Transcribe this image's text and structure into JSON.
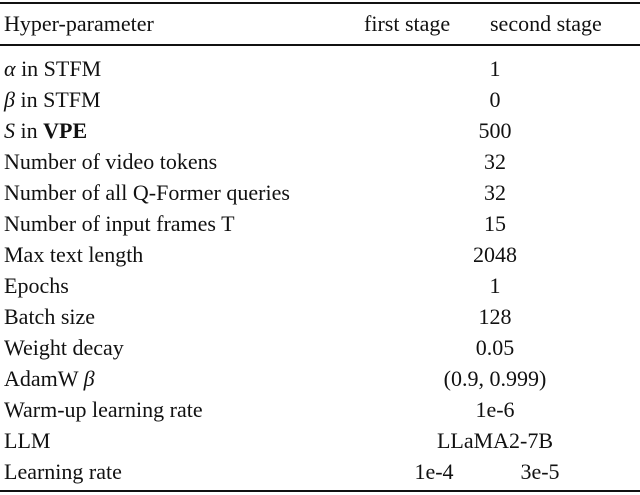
{
  "header": {
    "param": "Hyper-parameter",
    "first": "first stage",
    "second": "second stage"
  },
  "rows": [
    {
      "sym": "α",
      "rest": " in STFM",
      "value": "1"
    },
    {
      "sym": "β",
      "rest": " in STFM",
      "value": "0"
    },
    {
      "sym": "S",
      "rest": " in ",
      "bold": "VPE",
      "value": "500"
    },
    {
      "label": "Number of video tokens",
      "value": "32"
    },
    {
      "label": "Number of all Q-Former queries",
      "value": "32"
    },
    {
      "label": "Number of input frames T",
      "value": "15"
    },
    {
      "label": "Max text length",
      "value": "2048"
    },
    {
      "label": "Epochs",
      "value": "1"
    },
    {
      "label": "Batch size",
      "value": "128"
    },
    {
      "label": "Weight decay",
      "value": "0.05"
    },
    {
      "label": "AdamW ",
      "sym": "β",
      "value": "(0.9, 0.999)"
    },
    {
      "label": "Warm-up learning rate",
      "value": "1e-6"
    },
    {
      "label": "LLM",
      "value": "LLaMA2-7B"
    },
    {
      "label": "Learning rate",
      "first": "1e-4",
      "second": "3e-5"
    }
  ]
}
